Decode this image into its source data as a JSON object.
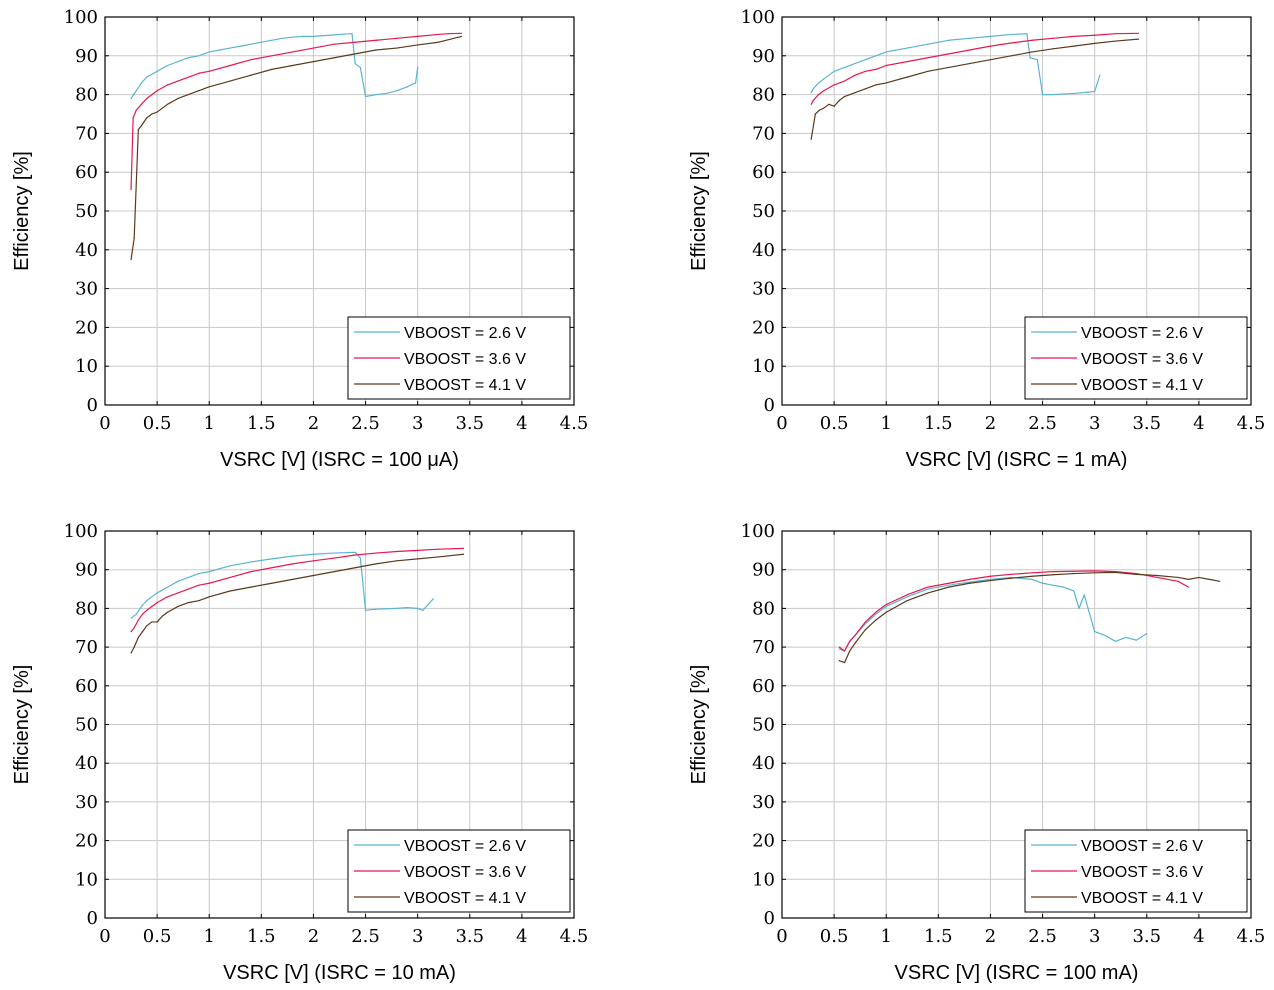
{
  "chart_data": [
    {
      "type": "line",
      "xlabel": "VSRC [V] (ISRC = 100 μA)",
      "ylabel": "Efficiency [%]",
      "xlim": [
        0,
        4.5
      ],
      "ylim": [
        0,
        100
      ],
      "xticks": [
        0,
        0.5,
        1,
        1.5,
        2,
        2.5,
        3,
        3.5,
        4,
        4.5
      ],
      "yticks": [
        0,
        10,
        20,
        30,
        40,
        50,
        60,
        70,
        80,
        90,
        100
      ],
      "grid": true,
      "legend": "bottom-right",
      "series": [
        {
          "name": "VBOOST = 2.6 V",
          "color": "#5ab4d2",
          "x": [
            0.25,
            0.3,
            0.35,
            0.4,
            0.5,
            0.6,
            0.7,
            0.8,
            0.9,
            1.0,
            1.1,
            1.2,
            1.3,
            1.4,
            1.5,
            1.6,
            1.7,
            1.8,
            1.9,
            2.0,
            2.1,
            2.2,
            2.3,
            2.37,
            2.4,
            2.45,
            2.5,
            2.6,
            2.7,
            2.8,
            2.9,
            2.98,
            3.0
          ],
          "y": [
            79,
            81,
            83,
            84.5,
            86,
            87.5,
            88.5,
            89.5,
            90,
            91,
            91.5,
            92,
            92.5,
            93,
            93.5,
            94,
            94.5,
            94.8,
            95,
            95,
            95.2,
            95.4,
            95.6,
            95.7,
            88,
            87,
            79.5,
            80,
            80.3,
            81,
            82,
            83,
            87
          ]
        },
        {
          "name": "VBOOST = 3.6 V",
          "color": "#e8174f",
          "x": [
            0.25,
            0.27,
            0.3,
            0.35,
            0.4,
            0.5,
            0.6,
            0.7,
            0.8,
            0.9,
            1.0,
            1.2,
            1.4,
            1.6,
            1.8,
            2.0,
            2.2,
            2.4,
            2.6,
            2.8,
            3.0,
            3.2,
            3.3,
            3.42
          ],
          "y": [
            55.5,
            74,
            76,
            77.5,
            79,
            81,
            82.5,
            83.5,
            84.5,
            85.5,
            86,
            87.5,
            89,
            90,
            91,
            92,
            93,
            93.5,
            94,
            94.5,
            95,
            95.5,
            95.7,
            95.8
          ]
        },
        {
          "name": "VBOOST = 4.1 V",
          "color": "#5a3b1c",
          "x": [
            0.25,
            0.28,
            0.32,
            0.35,
            0.4,
            0.45,
            0.5,
            0.6,
            0.7,
            0.8,
            0.9,
            1.0,
            1.2,
            1.4,
            1.6,
            1.8,
            2.0,
            2.2,
            2.4,
            2.6,
            2.8,
            3.0,
            3.2,
            3.42
          ],
          "y": [
            37.5,
            43,
            71,
            72,
            74,
            75,
            75.5,
            77.5,
            79,
            80,
            81,
            82,
            83.5,
            85,
            86.5,
            87.5,
            88.5,
            89.5,
            90.5,
            91.5,
            92,
            92.8,
            93.5,
            95
          ]
        }
      ]
    },
    {
      "type": "line",
      "xlabel": "VSRC [V] (ISRC = 1 mA)",
      "ylabel": "Efficiency [%]",
      "xlim": [
        0,
        4.5
      ],
      "ylim": [
        0,
        100
      ],
      "xticks": [
        0,
        0.5,
        1,
        1.5,
        2,
        2.5,
        3,
        3.5,
        4,
        4.5
      ],
      "yticks": [
        0,
        10,
        20,
        30,
        40,
        50,
        60,
        70,
        80,
        90,
        100
      ],
      "grid": true,
      "legend": "bottom-right",
      "series": [
        {
          "name": "VBOOST = 2.6 V",
          "color": "#5ab4d2",
          "x": [
            0.28,
            0.3,
            0.35,
            0.4,
            0.5,
            0.6,
            0.7,
            0.8,
            0.9,
            1.0,
            1.2,
            1.4,
            1.6,
            1.8,
            2.0,
            2.2,
            2.35,
            2.38,
            2.45,
            2.5,
            2.6,
            2.8,
            3.0,
            3.05
          ],
          "y": [
            80.5,
            81.5,
            83,
            84,
            86,
            87,
            88,
            89,
            90,
            91,
            92,
            93,
            94,
            94.5,
            95,
            95.5,
            95.7,
            89.5,
            89,
            80,
            80,
            80.3,
            80.8,
            85
          ]
        },
        {
          "name": "VBOOST = 3.6 V",
          "color": "#e8174f",
          "x": [
            0.28,
            0.3,
            0.35,
            0.4,
            0.5,
            0.6,
            0.7,
            0.8,
            0.9,
            1.0,
            1.2,
            1.4,
            1.6,
            1.8,
            2.0,
            2.2,
            2.4,
            2.6,
            2.8,
            3.0,
            3.2,
            3.42
          ],
          "y": [
            77.5,
            78.5,
            80,
            81,
            82.5,
            83.5,
            85,
            86,
            86.5,
            87.5,
            88.5,
            89.5,
            90.5,
            91.5,
            92.5,
            93.3,
            94,
            94.5,
            95,
            95.3,
            95.7,
            95.8
          ]
        },
        {
          "name": "VBOOST = 4.1 V",
          "color": "#5a3b1c",
          "x": [
            0.28,
            0.32,
            0.36,
            0.4,
            0.45,
            0.5,
            0.55,
            0.6,
            0.7,
            0.8,
            0.9,
            1.0,
            1.2,
            1.4,
            1.6,
            1.8,
            2.0,
            2.2,
            2.4,
            2.6,
            2.8,
            3.0,
            3.2,
            3.42
          ],
          "y": [
            68.5,
            75,
            76,
            76.5,
            77.5,
            77,
            78.5,
            79.5,
            80.5,
            81.5,
            82.5,
            83,
            84.5,
            86,
            87,
            88,
            89,
            90,
            91,
            91.8,
            92.5,
            93.2,
            93.8,
            94.3
          ]
        }
      ]
    },
    {
      "type": "line",
      "xlabel": "VSRC [V] (ISRC = 10 mA)",
      "ylabel": "Efficiency [%]",
      "xlim": [
        0,
        4.5
      ],
      "ylim": [
        0,
        100
      ],
      "xticks": [
        0,
        0.5,
        1,
        1.5,
        2,
        2.5,
        3,
        3.5,
        4,
        4.5
      ],
      "yticks": [
        0,
        10,
        20,
        30,
        40,
        50,
        60,
        70,
        80,
        90,
        100
      ],
      "grid": true,
      "legend": "bottom-right",
      "series": [
        {
          "name": "VBOOST = 2.6 V",
          "color": "#5ab4d2",
          "x": [
            0.25,
            0.3,
            0.35,
            0.4,
            0.5,
            0.6,
            0.7,
            0.8,
            0.9,
            1.0,
            1.2,
            1.4,
            1.6,
            1.8,
            2.0,
            2.2,
            2.4,
            2.45,
            2.5,
            2.6,
            2.8,
            2.9,
            3.0,
            3.05,
            3.15
          ],
          "y": [
            77.5,
            78.5,
            80.5,
            82,
            84,
            85.5,
            87,
            88,
            89,
            89.5,
            91,
            92,
            92.8,
            93.5,
            94,
            94.3,
            94.5,
            93,
            79.5,
            79.8,
            80,
            80.2,
            80,
            79.5,
            82.5
          ]
        },
        {
          "name": "VBOOST = 3.6 V",
          "color": "#e8174f",
          "x": [
            0.25,
            0.28,
            0.32,
            0.36,
            0.4,
            0.5,
            0.6,
            0.7,
            0.8,
            0.9,
            1.0,
            1.2,
            1.4,
            1.6,
            1.8,
            2.0,
            2.2,
            2.4,
            2.6,
            2.8,
            3.0,
            3.2,
            3.44
          ],
          "y": [
            74,
            75,
            77,
            78.5,
            79.5,
            81.5,
            83,
            84,
            85,
            86,
            86.5,
            88,
            89.5,
            90.5,
            91.5,
            92.3,
            93,
            93.8,
            94.3,
            94.7,
            95,
            95.3,
            95.5
          ]
        },
        {
          "name": "VBOOST = 4.1 V",
          "color": "#5a3b1c",
          "x": [
            0.25,
            0.28,
            0.32,
            0.36,
            0.4,
            0.45,
            0.5,
            0.55,
            0.6,
            0.7,
            0.8,
            0.9,
            1.0,
            1.2,
            1.4,
            1.6,
            1.8,
            2.0,
            2.2,
            2.4,
            2.6,
            2.8,
            3.0,
            3.2,
            3.44
          ],
          "y": [
            68.5,
            70,
            72.5,
            74,
            75.5,
            76.5,
            76.5,
            78,
            79,
            80.5,
            81.5,
            82,
            83,
            84.5,
            85.5,
            86.5,
            87.5,
            88.5,
            89.5,
            90.5,
            91.5,
            92.3,
            92.8,
            93.3,
            94
          ]
        }
      ]
    },
    {
      "type": "line",
      "xlabel": "VSRC [V] (ISRC = 100 mA)",
      "ylabel": "Efficiency [%]",
      "xlim": [
        0,
        4.5
      ],
      "ylim": [
        0,
        100
      ],
      "xticks": [
        0,
        0.5,
        1,
        1.5,
        2,
        2.5,
        3,
        3.5,
        4,
        4.5
      ],
      "yticks": [
        0,
        10,
        20,
        30,
        40,
        50,
        60,
        70,
        80,
        90,
        100
      ],
      "grid": true,
      "legend": "bottom-right",
      "series": [
        {
          "name": "VBOOST = 2.6 V",
          "color": "#5ab4d2",
          "x": [
            0.55,
            0.6,
            0.65,
            0.7,
            0.8,
            0.9,
            1.0,
            1.2,
            1.4,
            1.6,
            1.8,
            2.0,
            2.2,
            2.4,
            2.5,
            2.6,
            2.7,
            2.8,
            2.85,
            2.9,
            3.0,
            3.1,
            3.2,
            3.3,
            3.4,
            3.5
          ],
          "y": [
            69.5,
            69,
            71.5,
            73,
            76,
            78.5,
            80.5,
            83,
            85,
            86,
            86.8,
            87.5,
            88,
            87.5,
            86.5,
            86,
            85.5,
            84.5,
            80,
            83.5,
            74,
            73,
            71.5,
            72.5,
            71.8,
            73.5
          ]
        },
        {
          "name": "VBOOST = 3.6 V",
          "color": "#e8174f",
          "x": [
            0.55,
            0.6,
            0.65,
            0.7,
            0.8,
            0.9,
            1.0,
            1.2,
            1.4,
            1.6,
            1.8,
            2.0,
            2.2,
            2.4,
            2.6,
            2.8,
            3.0,
            3.2,
            3.4,
            3.6,
            3.8,
            3.9
          ],
          "y": [
            70,
            69,
            71.5,
            73,
            76.5,
            79,
            81,
            83.5,
            85.5,
            86.5,
            87.5,
            88.3,
            88.8,
            89.2,
            89.5,
            89.6,
            89.7,
            89.5,
            89,
            88,
            87,
            85.5
          ]
        },
        {
          "name": "VBOOST = 4.1 V",
          "color": "#5a3b1c",
          "x": [
            0.55,
            0.6,
            0.65,
            0.7,
            0.8,
            0.9,
            1.0,
            1.2,
            1.4,
            1.6,
            1.8,
            2.0,
            2.2,
            2.4,
            2.6,
            2.8,
            3.0,
            3.2,
            3.4,
            3.6,
            3.8,
            3.9,
            4.0,
            4.1,
            4.2
          ],
          "y": [
            66.5,
            66,
            69,
            71,
            74.5,
            77,
            79,
            82,
            84,
            85.5,
            86.5,
            87.2,
            87.8,
            88.3,
            88.7,
            89,
            89.2,
            89.3,
            88.8,
            88.5,
            88,
            87.5,
            88,
            87.5,
            87
          ]
        }
      ]
    }
  ]
}
